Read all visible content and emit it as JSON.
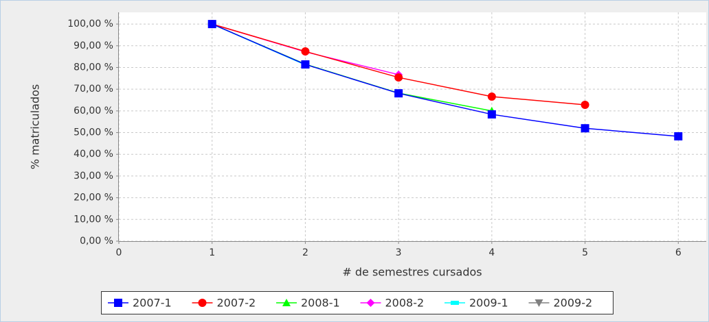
{
  "chart_data": {
    "type": "line",
    "x_label": "# de semestres cursados",
    "y_label": "% matriculados",
    "x": [
      1,
      2,
      3,
      4,
      5,
      6
    ],
    "series": [
      {
        "name": "2007-1",
        "color": "#0000ff",
        "marker": "square",
        "values": [
          100,
          81.4,
          68.1,
          58.4,
          52.0,
          48.3
        ]
      },
      {
        "name": "2007-2",
        "color": "#ff0000",
        "marker": "circle",
        "values": [
          100,
          87.4,
          75.4,
          66.6,
          62.8,
          null
        ]
      },
      {
        "name": "2008-1",
        "color": "#00ff00",
        "marker": "triangle-up",
        "values": [
          100,
          81.5,
          68.2,
          60.0,
          null,
          null
        ]
      },
      {
        "name": "2008-2",
        "color": "#ff00ff",
        "marker": "diamond",
        "values": [
          100,
          87.2,
          76.7,
          null,
          null,
          null
        ]
      },
      {
        "name": "2009-1",
        "color": "#00ffff",
        "marker": "bar",
        "values": [
          100,
          81.2,
          null,
          null,
          null,
          null
        ]
      },
      {
        "name": "2009-2",
        "color": "#808080",
        "marker": "triangle-down",
        "values": [
          100,
          null,
          null,
          null,
          null,
          null
        ]
      }
    ],
    "xlim": [
      0,
      6.3
    ],
    "xticks": [
      0,
      1,
      2,
      3,
      4,
      5,
      6
    ],
    "ylim": [
      0,
      105.4
    ],
    "yticks": [
      {
        "value": 0,
        "label": "0,00 %"
      },
      {
        "value": 10,
        "label": "10,00 %"
      },
      {
        "value": 20,
        "label": "20,00 %"
      },
      {
        "value": 30,
        "label": "30,00 %"
      },
      {
        "value": 40,
        "label": "40,00 %"
      },
      {
        "value": 50,
        "label": "50,00 %"
      },
      {
        "value": 60,
        "label": "60,00 %"
      },
      {
        "value": 70,
        "label": "70,00 %"
      },
      {
        "value": 80,
        "label": "80,00 %"
      },
      {
        "value": 90,
        "label": "90,00 %"
      },
      {
        "value": 100,
        "label": "100,00 %"
      }
    ],
    "grid": true,
    "legend": "bottom"
  }
}
